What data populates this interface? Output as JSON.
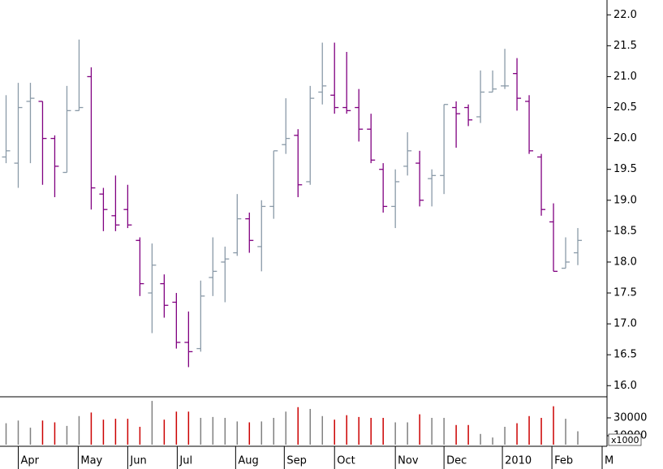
{
  "chart_data": [
    {
      "type": "ohlc",
      "up_color": "#8a9aa8",
      "down_color": "#800080",
      "xlim": [
        -0.5,
        49.4
      ],
      "ylim": [
        15.82,
        22.24
      ],
      "yticks": [
        {
          "value": 16,
          "label": "16.0"
        },
        16.5,
        {
          "value": 17,
          "label": "17.0"
        },
        17.5,
        {
          "value": 18,
          "label": "18.0"
        },
        18.5,
        {
          "value": 19,
          "label": "19.0"
        },
        19.5,
        {
          "value": 20,
          "label": "20.0"
        },
        20.5,
        {
          "value": 21,
          "label": "21.0"
        },
        21.5,
        {
          "value": 22,
          "label": "22.0"
        }
      ],
      "open": [
        19.7,
        19.6,
        20.6,
        20.6,
        20.0,
        19.45,
        20.45,
        21.0,
        19.1,
        18.75,
        18.85,
        18.35,
        17.5,
        17.65,
        17.35,
        16.7,
        16.6,
        17.75,
        18.0,
        18.15,
        18.7,
        18.25,
        18.9,
        19.9,
        20.05,
        19.3,
        20.75,
        20.7,
        20.5,
        20.5,
        20.15,
        19.5,
        18.9,
        19.55,
        19.6,
        19.35,
        19.4,
        20.5,
        20.5,
        20.35,
        20.75,
        20.85,
        21.05,
        20.6,
        19.7,
        18.65,
        17.9,
        18.15
      ],
      "high": [
        20.7,
        20.9,
        20.9,
        20.6,
        20.05,
        20.85,
        21.6,
        21.15,
        19.2,
        19.4,
        19.25,
        18.4,
        18.3,
        17.8,
        17.5,
        17.2,
        17.7,
        18.4,
        18.25,
        19.1,
        18.8,
        19.0,
        19.8,
        20.65,
        20.15,
        20.85,
        21.55,
        21.55,
        21.4,
        20.8,
        20.4,
        19.6,
        19.5,
        20.1,
        19.8,
        19.5,
        20.55,
        20.6,
        20.55,
        21.1,
        21.1,
        21.45,
        21.3,
        20.7,
        19.75,
        18.95,
        18.4,
        18.55
      ],
      "low": [
        19.6,
        19.2,
        19.6,
        19.25,
        19.05,
        19.45,
        20.45,
        18.85,
        18.5,
        18.5,
        18.55,
        17.45,
        16.85,
        17.1,
        16.6,
        16.3,
        16.55,
        17.45,
        17.35,
        18.1,
        18.15,
        17.85,
        18.7,
        19.75,
        19.05,
        19.25,
        20.55,
        20.4,
        20.4,
        19.95,
        19.6,
        18.8,
        18.55,
        19.4,
        18.9,
        18.9,
        19.1,
        19.85,
        20.2,
        20.25,
        20.75,
        20.8,
        20.45,
        19.75,
        18.75,
        17.85,
        17.9,
        17.95
      ],
      "close": [
        19.8,
        20.5,
        20.65,
        20.0,
        19.55,
        20.45,
        20.5,
        19.2,
        18.85,
        18.6,
        18.6,
        17.65,
        17.95,
        17.3,
        16.7,
        16.55,
        17.45,
        17.85,
        18.05,
        18.7,
        18.35,
        18.9,
        19.8,
        20.0,
        19.25,
        20.65,
        20.85,
        20.5,
        20.45,
        20.15,
        19.65,
        18.9,
        19.3,
        19.8,
        19.0,
        19.4,
        20.55,
        20.4,
        20.3,
        20.75,
        20.8,
        20.85,
        20.65,
        19.8,
        18.85,
        17.85,
        18.0,
        18.35
      ]
    },
    {
      "type": "volume",
      "up_color": "#808080",
      "down_color": "#cc0000",
      "ylim": [
        0,
        52700
      ],
      "yticks": [
        10000,
        30000
      ],
      "unit_label": "x1000",
      "xticks": [
        {
          "value": 1,
          "label": "Apr"
        },
        {
          "value": 5.93,
          "label": "May"
        },
        {
          "value": 10,
          "label": "Jun"
        },
        {
          "value": 14.07,
          "label": "Jul"
        },
        {
          "value": 18.87,
          "label": "Aug"
        },
        {
          "value": 22.87,
          "label": "Sep"
        },
        {
          "value": 27,
          "label": "Oct"
        },
        {
          "value": 32,
          "label": "Nov"
        },
        {
          "value": 36,
          "label": "Dec"
        },
        {
          "value": 40.8,
          "label": "2010"
        },
        {
          "value": 44.87,
          "label": "Feb"
        },
        {
          "value": 49,
          "label": "M"
        }
      ],
      "values": [
        24000,
        27000,
        19000,
        27000,
        25000,
        21000,
        32000,
        36000,
        28000,
        29000,
        29000,
        20000,
        49000,
        28000,
        37000,
        37000,
        30000,
        31000,
        30000,
        26000,
        25000,
        26000,
        30000,
        37000,
        42000,
        40000,
        32000,
        28000,
        33000,
        31000,
        30000,
        30000,
        25000,
        25000,
        34000,
        30000,
        30000,
        22000,
        22000,
        12000,
        8000,
        20000,
        24000,
        32000,
        30000,
        43000,
        29000,
        15000
      ]
    }
  ]
}
